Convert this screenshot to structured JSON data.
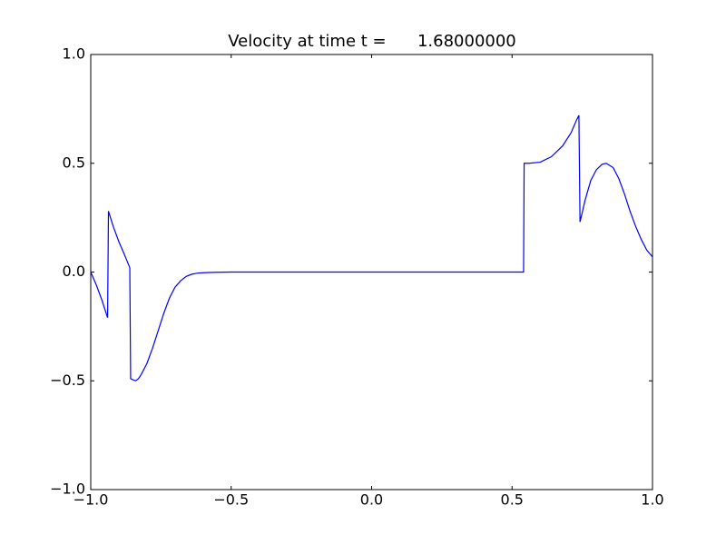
{
  "chart_data": {
    "type": "line",
    "title": "Velocity at time t =      1.68000000",
    "x": [
      -1,
      -0.98,
      -0.96,
      -0.94,
      -0.937,
      -0.92,
      -0.9,
      -0.88,
      -0.861,
      -0.858,
      -0.85,
      -0.84,
      -0.83,
      -0.82,
      -0.8,
      -0.78,
      -0.76,
      -0.74,
      -0.72,
      -0.7,
      -0.68,
      -0.66,
      -0.64,
      -0.62,
      -0.6,
      -0.58,
      -0.55,
      -0.5,
      0,
      0.5,
      0.541,
      0.543,
      0.56,
      0.6,
      0.64,
      0.68,
      0.71,
      0.73,
      0.738,
      0.742,
      0.76,
      0.78,
      0.8,
      0.82,
      0.835,
      0.86,
      0.88,
      0.9,
      0.92,
      0.94,
      0.96,
      0.98,
      1.0
    ],
    "values": [
      0,
      -0.06,
      -0.13,
      -0.21,
      0.28,
      0.21,
      0.14,
      0.08,
      0.02,
      -0.49,
      -0.495,
      -0.5,
      -0.49,
      -0.47,
      -0.42,
      -0.35,
      -0.27,
      -0.19,
      -0.12,
      -0.07,
      -0.04,
      -0.02,
      -0.01,
      -0.005,
      -0.003,
      -0.002,
      -0.001,
      0,
      0,
      0,
      0,
      0.5,
      0.5,
      0.505,
      0.53,
      0.58,
      0.64,
      0.7,
      0.72,
      0.23,
      0.33,
      0.42,
      0.47,
      0.495,
      0.5,
      0.48,
      0.43,
      0.36,
      0.28,
      0.21,
      0.15,
      0.1,
      0.07
    ],
    "color": "#0000ff",
    "xlim": [
      -1,
      1
    ],
    "ylim": [
      -1,
      1
    ],
    "xticks": [
      {
        "value": -1,
        "label": "−1.0"
      },
      {
        "value": -0.5,
        "label": "−0.5"
      },
      {
        "value": 0,
        "label": "0.0"
      },
      0.5,
      {
        "value": 1,
        "label": "1.0"
      }
    ],
    "yticks": [
      {
        "value": -1,
        "label": "−1.0"
      },
      {
        "value": -0.5,
        "label": "−0.5"
      },
      {
        "value": 0,
        "label": "0.0"
      },
      0.5,
      {
        "value": 1,
        "label": "1.0"
      }
    ]
  }
}
